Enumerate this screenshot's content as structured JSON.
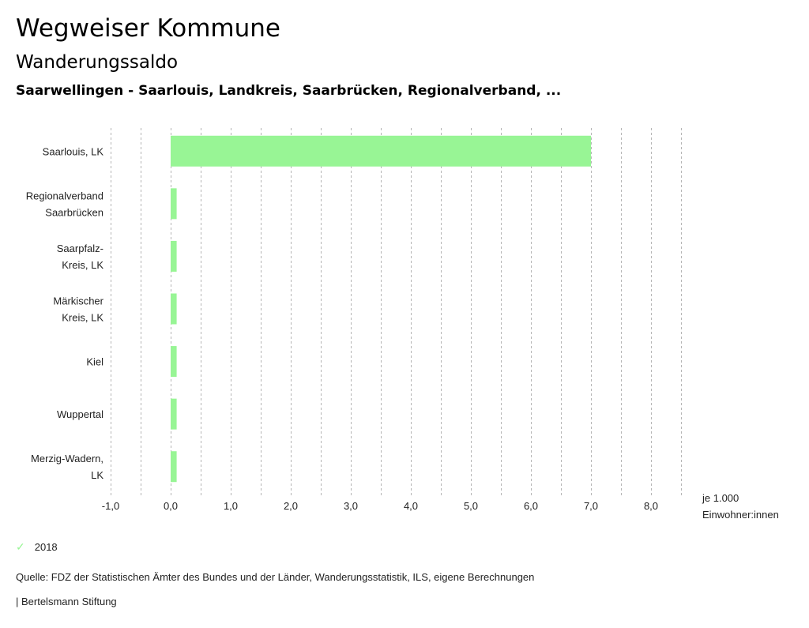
{
  "header": {
    "title": "Wegweiser Kommune",
    "subtitle": "Wanderungssaldo",
    "description": "Saarwellingen - Saarlouis, Landkreis, Saarbrücken, Regionalverband, ..."
  },
  "chart_data": {
    "type": "bar",
    "orientation": "horizontal",
    "categories": [
      [
        "Saarlouis, LK"
      ],
      [
        "Regionalverband",
        "Saarbrücken"
      ],
      [
        "Saarpfalz-",
        "Kreis, LK"
      ],
      [
        "Märkischer",
        "Kreis, LK"
      ],
      [
        "Kiel"
      ],
      [
        "Wuppertal"
      ],
      [
        "Merzig-Wadern,",
        "LK"
      ]
    ],
    "series": [
      {
        "name": "2018",
        "color": "#98f595",
        "values": [
          7.0,
          0.1,
          0.1,
          0.1,
          0.1,
          0.1,
          0.1
        ]
      }
    ],
    "xlim": [
      -1.0,
      8.5
    ],
    "xticks": [
      -1.0,
      0.0,
      1.0,
      2.0,
      3.0,
      4.0,
      5.0,
      6.0,
      7.0,
      8.0
    ],
    "xtick_labels": [
      "-1,0",
      "0,0",
      "1,0",
      "2,0",
      "3,0",
      "4,0",
      "5,0",
      "6,0",
      "7,0",
      "8,0"
    ],
    "xlabel": [
      "je 1.000",
      "Einwohner:innen"
    ],
    "grid": "vertical dashed every 0.5",
    "legend_position": "bottom-left"
  },
  "legend": {
    "items": [
      {
        "label": "2018",
        "icon": "check-icon",
        "color": "#98f595"
      }
    ]
  },
  "footer": {
    "source": "Quelle: FDZ der Statistischen Ämter des Bundes und der Länder, Wanderungsstatistik, ILS, eigene Berechnungen",
    "brand": "| Bertelsmann Stiftung"
  }
}
